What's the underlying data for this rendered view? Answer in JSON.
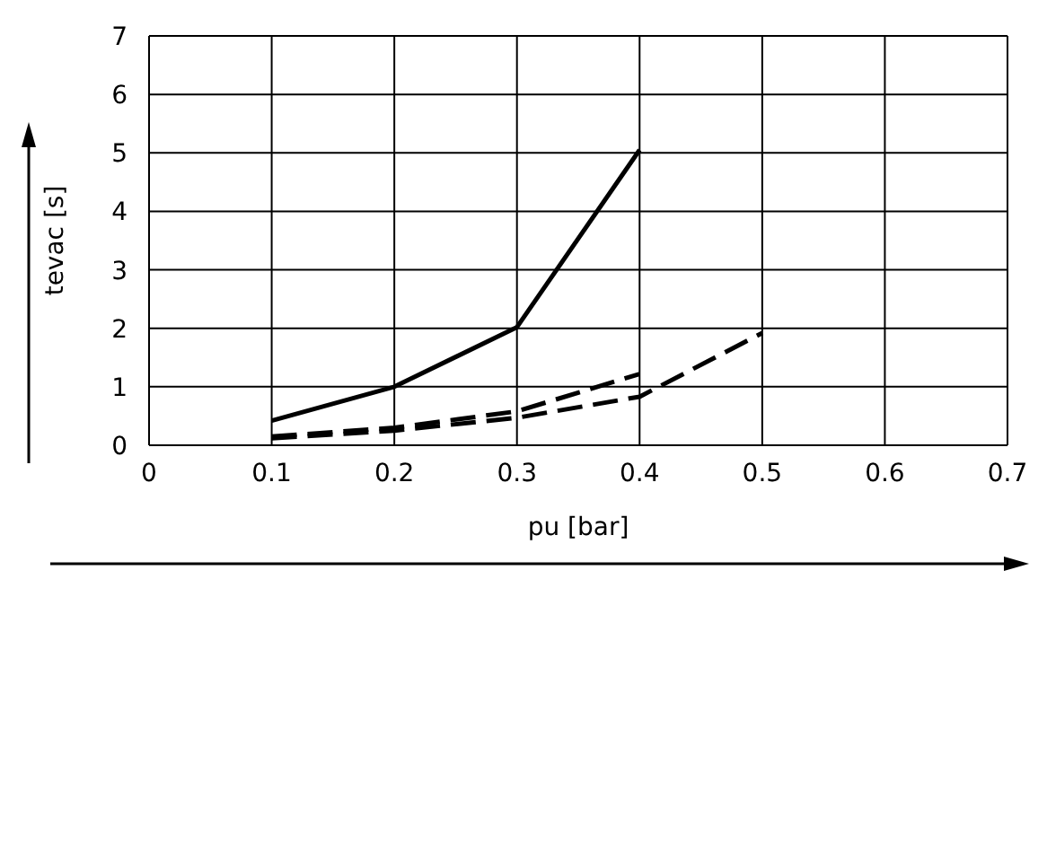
{
  "chart_data": {
    "type": "line",
    "xlabel": "pu [bar]",
    "ylabel": "tevac [s]",
    "xlim": [
      0,
      0.7
    ],
    "xticks": [
      0,
      0.1,
      0.2,
      0.3,
      0.4,
      0.5,
      0.6,
      0.7
    ],
    "ylim": [
      0,
      7
    ],
    "yticks": [
      0,
      1,
      2,
      3,
      4,
      5,
      6,
      7
    ],
    "grid": true,
    "marker": "none",
    "series": [
      {
        "color": "#000000",
        "line_style": "solid",
        "x": [
          0.1,
          0.2,
          0.3,
          0.4
        ],
        "values": [
          0.42,
          1.0,
          2.02,
          5.05
        ]
      },
      {
        "color": "#000000",
        "line_style": "dashed",
        "x": [
          0.1,
          0.2,
          0.3,
          0.4
        ],
        "values": [
          0.15,
          0.3,
          0.58,
          1.22
        ]
      },
      {
        "color": "#000000",
        "line_style": "dashed",
        "x": [
          0.1,
          0.2,
          0.3,
          0.4,
          0.5
        ],
        "values": [
          0.12,
          0.25,
          0.47,
          0.83,
          1.92
        ]
      }
    ]
  }
}
